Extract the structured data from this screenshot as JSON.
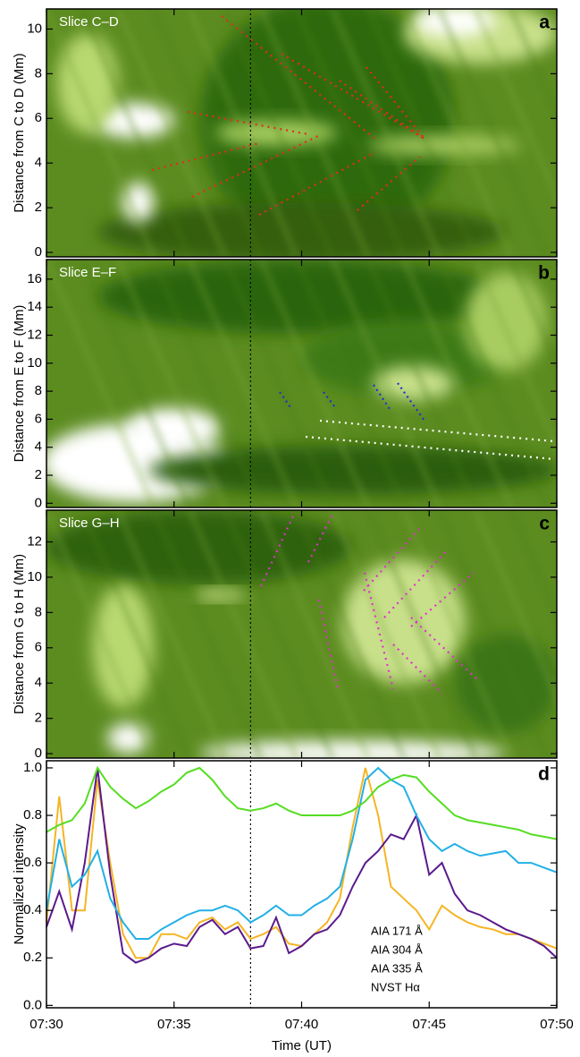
{
  "chart_data": [
    {
      "type": "image",
      "panel_label": "a",
      "slice_label": "Slice C–D",
      "ylabel": "Distance from C to D (Mm)",
      "ylim": [
        -0.2,
        10.9
      ],
      "yticks": [
        0,
        2,
        4,
        6,
        8,
        10
      ]
    },
    {
      "type": "image",
      "panel_label": "b",
      "slice_label": "Slice E–F",
      "ylabel": "Distance from E to F (Mm)",
      "ylim": [
        -0.3,
        17.4
      ],
      "yticks": [
        0,
        2,
        4,
        6,
        8,
        10,
        12,
        14,
        16
      ]
    },
    {
      "type": "image",
      "panel_label": "c",
      "slice_label": "Slice G–H",
      "ylabel": "Distance from G to H (Mm)",
      "ylim": [
        -0.25,
        13.8
      ],
      "yticks": [
        0,
        2,
        4,
        6,
        8,
        10,
        12
      ]
    },
    {
      "type": "line",
      "panel_label": "d",
      "xlabel": "Time (UT)",
      "ylabel": "Normalized intensity",
      "xlim": [
        450,
        470
      ],
      "xticks": [
        {
          "value": 450,
          "label": "07:30"
        },
        {
          "value": 455,
          "label": "07:35"
        },
        {
          "value": 460,
          "label": "07:40"
        },
        {
          "value": 465,
          "label": "07:45"
        },
        {
          "value": 470,
          "label": "07:50"
        }
      ],
      "ylim": [
        -0.01,
        1.03
      ],
      "yticks": [
        {
          "value": 0,
          "label": "0.0"
        },
        0.2,
        0.4,
        0.6,
        0.8,
        {
          "value": 1,
          "label": "1.0"
        }
      ],
      "vline_x": 458,
      "x": [
        450,
        450.5,
        451,
        451.5,
        452,
        452.5,
        453,
        453.5,
        454,
        454.5,
        455,
        455.5,
        456,
        456.5,
        457,
        457.5,
        458,
        458.5,
        459,
        459.5,
        460,
        460.5,
        461,
        461.5,
        462,
        462.5,
        463,
        463.5,
        464,
        464.5,
        465,
        465.5,
        466,
        466.5,
        467,
        467.5,
        468,
        468.5,
        469,
        469.5,
        470
      ],
      "series": [
        {
          "name": "AIA 171 Å",
          "color": "#f5b524",
          "values": [
            0.35,
            0.88,
            0.4,
            0.4,
            0.95,
            0.6,
            0.3,
            0.2,
            0.2,
            0.3,
            0.3,
            0.28,
            0.35,
            0.37,
            0.32,
            0.35,
            0.28,
            0.3,
            0.33,
            0.26,
            0.25,
            0.3,
            0.35,
            0.45,
            0.75,
            1.0,
            0.8,
            0.5,
            0.45,
            0.4,
            0.32,
            0.42,
            0.38,
            0.35,
            0.33,
            0.32,
            0.3,
            0.3,
            0.28,
            0.26,
            0.24
          ]
        },
        {
          "name": "AIA 304 Å",
          "color": "#5a1a8c",
          "values": [
            0.33,
            0.48,
            0.32,
            0.6,
            1.0,
            0.55,
            0.22,
            0.18,
            0.2,
            0.24,
            0.26,
            0.25,
            0.33,
            0.36,
            0.3,
            0.33,
            0.24,
            0.25,
            0.37,
            0.22,
            0.25,
            0.3,
            0.32,
            0.38,
            0.5,
            0.6,
            0.65,
            0.72,
            0.7,
            0.8,
            0.55,
            0.6,
            0.47,
            0.4,
            0.38,
            0.35,
            0.32,
            0.3,
            0.28,
            0.25,
            0.2
          ]
        },
        {
          "name": "AIA 335 Å",
          "color": "#22b0e6",
          "values": [
            0.4,
            0.7,
            0.5,
            0.55,
            0.65,
            0.45,
            0.35,
            0.28,
            0.28,
            0.32,
            0.35,
            0.38,
            0.4,
            0.4,
            0.42,
            0.4,
            0.35,
            0.38,
            0.42,
            0.38,
            0.38,
            0.42,
            0.45,
            0.5,
            0.7,
            0.95,
            1.0,
            0.95,
            0.92,
            0.8,
            0.7,
            0.65,
            0.68,
            0.65,
            0.63,
            0.64,
            0.65,
            0.6,
            0.6,
            0.58,
            0.56
          ]
        },
        {
          "name": "NVST Hα",
          "color": "#55dd22",
          "values": [
            0.73,
            0.76,
            0.78,
            0.85,
            1.0,
            0.92,
            0.87,
            0.83,
            0.86,
            0.9,
            0.93,
            0.98,
            1.0,
            0.95,
            0.88,
            0.83,
            0.82,
            0.83,
            0.85,
            0.82,
            0.8,
            0.8,
            0.8,
            0.8,
            0.82,
            0.86,
            0.92,
            0.95,
            0.97,
            0.96,
            0.9,
            0.85,
            0.8,
            0.78,
            0.77,
            0.76,
            0.75,
            0.74,
            0.72,
            0.71,
            0.7
          ]
        }
      ]
    }
  ]
}
